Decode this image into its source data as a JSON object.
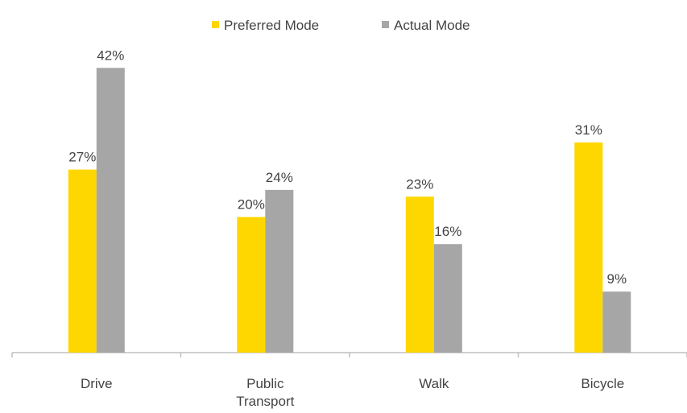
{
  "chart_data": {
    "type": "bar",
    "categories": [
      "Drive",
      "Public Transport",
      "Walk",
      "Bicycle"
    ],
    "series": [
      {
        "name": "Preferred Mode",
        "values": [
          27,
          20,
          23,
          31
        ],
        "labels": [
          "27%",
          "20%",
          "23%",
          "31%"
        ],
        "color": "#FFD700"
      },
      {
        "name": "Actual Mode",
        "values": [
          42,
          24,
          16,
          9
        ],
        "labels": [
          "42%",
          "24%",
          "16%",
          "9%"
        ],
        "color": "#A6A6A6"
      }
    ],
    "unit": "%",
    "ylim": [
      0,
      45
    ],
    "legend_position": "top",
    "grid": false,
    "axis_color": "#BFBFBF"
  }
}
